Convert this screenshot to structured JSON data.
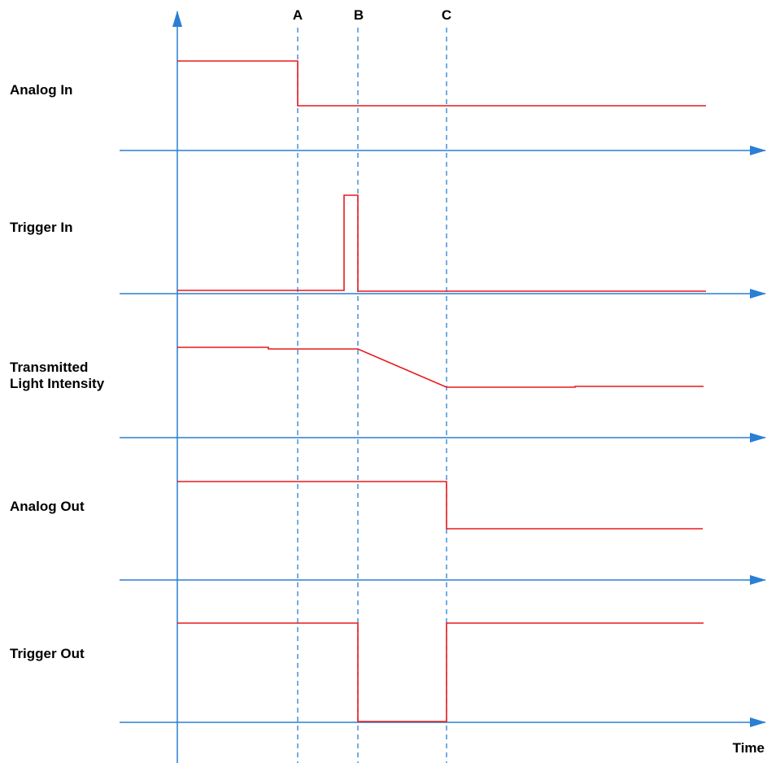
{
  "diagram": {
    "markers": [
      "A",
      "B",
      "C"
    ],
    "signals": [
      {
        "label_lines": [
          "Analog In"
        ]
      },
      {
        "label_lines": [
          "Trigger In"
        ]
      },
      {
        "label_lines": [
          "Transmitted",
          "Light Intensity"
        ]
      },
      {
        "label_lines": [
          "Analog Out"
        ]
      },
      {
        "label_lines": [
          "Trigger Out"
        ]
      }
    ],
    "x_axis_label": "Time",
    "colors": {
      "axis": "#2a7fd4",
      "signal": "#e8191c",
      "text": "#000000"
    }
  }
}
